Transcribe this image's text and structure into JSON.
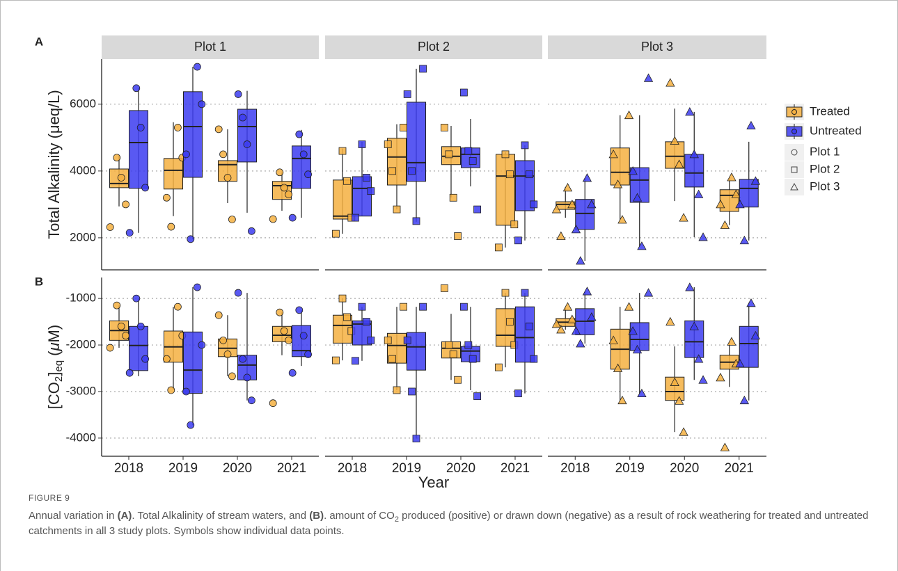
{
  "chart_data": {
    "type": "box",
    "x_label": "Year",
    "categories": [
      "2018",
      "2019",
      "2020",
      "2021"
    ],
    "facets": [
      "Plot 1",
      "Plot 2",
      "Plot 3"
    ],
    "shapes": [
      "circle",
      "square",
      "triangle"
    ],
    "series": [
      {
        "name": "Treated",
        "color": "#f5b041"
      },
      {
        "name": "Untreated",
        "color": "#3c3cf0"
      }
    ],
    "grid": true,
    "panels": [
      {
        "label": "A",
        "y_label": [
          {
            "text": "Total Alkalinity (μeq/L)"
          }
        ],
        "ylim": [
          1040,
          7350
        ],
        "yticks": [
          2000,
          4000,
          6000
        ],
        "boxes": [
          [
            [
              {
                "stats": [
                  2940,
                  3500,
                  3625,
                  4060,
                  4480
                ],
                "points": [
                  2320,
                  3000,
                  3800,
                  4400
                ]
              },
              {
                "stats": [
                  2650,
                  3460,
                  4020,
                  4375,
                  5460
                ],
                "points": [
                  2330,
                  3200,
                  4400,
                  5300
                ]
              },
              {
                "stats": [
                  3040,
                  3690,
                  4190,
                  4310,
                  5250
                ],
                "points": [
                  2550,
                  3800,
                  4500,
                  5250
                ]
              },
              {
                "stats": [
                  2810,
                  3150,
                  3560,
                  3690,
                  3960
                ],
                "points": [
                  2560,
                  3300,
                  3500,
                  3960
                ]
              }
            ],
            [
              {
                "stats": [
                  2150,
                  3480,
                  4850,
                  5810,
                  6480
                ],
                "points": [
                  2150,
                  3500,
                  5300,
                  6480
                ]
              },
              {
                "stats": [
                  1960,
                  3810,
                  5330,
                  6375,
                  7120
                ],
                "points": [
                  1960,
                  4500,
                  6000,
                  7120
                ]
              },
              {
                "stats": [
                  2750,
                  4270,
                  5330,
                  5850,
                  6400
                ],
                "points": [
                  2200,
                  4800,
                  5600,
                  6300
                ]
              },
              {
                "stats": [
                  2600,
                  3480,
                  4375,
                  4750,
                  5230
                ],
                "points": [
                  2600,
                  3900,
                  4500,
                  5100
                ]
              }
            ]
          ],
          [
            [
              {
                "stats": [
                  2120,
                  2560,
                  2650,
                  3730,
                  4670
                ],
                "points": [
                  2120,
                  2600,
                  3700,
                  4600
                ]
              },
              {
                "stats": [
                  2850,
                  3580,
                  4420,
                  4980,
                  5400
                ],
                "points": [
                  2850,
                  4000,
                  4800,
                  5300
                ]
              },
              {
                "stats": [
                  3210,
                  4190,
                  4440,
                  4730,
                  5350
                ],
                "points": [
                  2050,
                  3200,
                  4500,
                  5300
                ]
              },
              {
                "stats": [
                  1710,
                  2375,
                  3850,
                  4500,
                  4560
                ],
                "points": [
                  1710,
                  2400,
                  3900,
                  4500
                ]
              }
            ],
            [
              {
                "stats": [
                  2650,
                  2650,
                  3480,
                  3830,
                  4875
                ],
                "points": [
                  2600,
                  3400,
                  3800,
                  4800
                ]
              },
              {
                "stats": [
                  2480,
                  3690,
                  4250,
                  6060,
                  7060
                ],
                "points": [
                  2500,
                  4000,
                  6300,
                  7060
                ]
              },
              {
                "stats": [
                  3540,
                  4100,
                  4500,
                  4690,
                  5560
                ],
                "points": [
                  2850,
                  4300,
                  4600,
                  6350
                ]
              },
              {
                "stats": [
                  1920,
                  2810,
                  3850,
                  4310,
                  4770
                ],
                "points": [
                  1920,
                  3000,
                  3900,
                  4770
                ]
              }
            ]
          ],
          [
            [
              {
                "stats": [
                  2600,
                  2850,
                  3000,
                  3080,
                  3520
                ],
                "points": [
                  2050,
                  2850,
                  3000,
                  3500
                ]
              },
              {
                "stats": [
                  2540,
                  3580,
                  3960,
                  4690,
                  5670
                ],
                "points": [
                  2540,
                  3600,
                  4500,
                  5670
                ]
              },
              {
                "stats": [
                  3100,
                  4080,
                  4440,
                  4875,
                  5870
                ],
                "points": [
                  2600,
                  4200,
                  4900,
                  6640
                ]
              },
              {
                "stats": [
                  2380,
                  2790,
                  3270,
                  3440,
                  3810
                ],
                "points": [
                  2380,
                  3000,
                  3300,
                  3810
                ]
              }
            ],
            [
              {
                "stats": [
                  1310,
                  2250,
                  2730,
                  3150,
                  3790
                ],
                "points": [
                  1310,
                  2250,
                  3000,
                  3790
                ]
              },
              {
                "stats": [
                  1750,
                  3060,
                  3730,
                  4100,
                  5670
                ],
                "points": [
                  1750,
                  3200,
                  4000,
                  6780
                ]
              },
              {
                "stats": [
                  2020,
                  3520,
                  3940,
                  4500,
                  5770
                ],
                "points": [
                  2020,
                  3300,
                  4500,
                  5770
                ]
              },
              {
                "stats": [
                  1920,
                  2920,
                  3480,
                  3750,
                  4875
                ],
                "points": [
                  1920,
                  3000,
                  3700,
                  5360
                ]
              }
            ]
          ]
        ]
      },
      {
        "label": "B",
        "y_label": [
          {
            "text": "[CO"
          },
          {
            "text": "2",
            "sub": true
          },
          {
            "text": "]"
          },
          {
            "text": "eq",
            "sub": true
          },
          {
            "text": " ("
          },
          {
            "text": "μ",
            "italic": true
          },
          {
            "text": "M)"
          }
        ],
        "ylim": [
          -4390,
          -550
        ],
        "yticks": [
          -4000,
          -3000,
          -2000,
          -1000
        ],
        "boxes": [
          [
            [
              {
                "stats": [
                  -2060,
                  -1900,
                  -1690,
                  -1480,
                  -1150
                ],
                "points": [
                  -2060,
                  -1800,
                  -1600,
                  -1150
                ]
              },
              {
                "stats": [
                  -2970,
                  -2370,
                  -2040,
                  -1700,
                  -1180
                ],
                "points": [
                  -2970,
                  -2300,
                  -1800,
                  -1180
                ]
              },
              {
                "stats": [
                  -2670,
                  -2250,
                  -2070,
                  -1870,
                  -1360
                ],
                "points": [
                  -2670,
                  -2200,
                  -1900,
                  -1360
                ]
              },
              {
                "stats": [
                  -2220,
                  -1930,
                  -1790,
                  -1600,
                  -1300
                ],
                "points": [
                  -3250,
                  -1900,
                  -1700,
                  -1300
                ]
              }
            ],
            [
              {
                "stats": [
                  -2670,
                  -2550,
                  -2010,
                  -1600,
                  -1000
                ],
                "points": [
                  -2600,
                  -2300,
                  -1600,
                  -1000
                ]
              },
              {
                "stats": [
                  -3720,
                  -3040,
                  -2540,
                  -1720,
                  -760
                ],
                "points": [
                  -3720,
                  -3000,
                  -2000,
                  -760
                ]
              },
              {
                "stats": [
                  -3190,
                  -2750,
                  -2430,
                  -2220,
                  -880
                ],
                "points": [
                  -3190,
                  -2700,
                  -2300,
                  -880
                ]
              },
              {
                "stats": [
                  -2450,
                  -2250,
                  -2120,
                  -1580,
                  -1250
                ],
                "points": [
                  -2600,
                  -2200,
                  -1800,
                  -1250
                ]
              }
            ]
          ],
          [
            [
              {
                "stats": [
                  -2330,
                  -1960,
                  -1580,
                  -1360,
                  -1000
                ],
                "points": [
                  -2330,
                  -1700,
                  -1400,
                  -1000
                ]
              },
              {
                "stats": [
                  -2970,
                  -2390,
                  -2010,
                  -1750,
                  -1180
                ],
                "points": [
                  -2970,
                  -2300,
                  -1900,
                  -1180
                ]
              },
              {
                "stats": [
                  -2750,
                  -2280,
                  -2070,
                  -1930,
                  -1330
                ],
                "points": [
                  -2750,
                  -2200,
                  -2000,
                  -780
                ]
              },
              {
                "stats": [
                  -2480,
                  -2030,
                  -1790,
                  -1220,
                  -880
                ],
                "points": [
                  -2480,
                  -2000,
                  -1500,
                  -880
                ]
              }
            ],
            [
              {
                "stats": [
                  -2340,
                  -2000,
                  -1550,
                  -1480,
                  -1180
                ],
                "points": [
                  -2340,
                  -1900,
                  -1500,
                  -1180
                ]
              },
              {
                "stats": [
                  -4010,
                  -2540,
                  -2040,
                  -1730,
                  -1180
                ],
                "points": [
                  -4010,
                  -3000,
                  -1900,
                  -1180
                ]
              },
              {
                "stats": [
                  -2970,
                  -2360,
                  -2130,
                  -2030,
                  -1180
                ],
                "points": [
                  -3100,
                  -2300,
                  -2000,
                  -1180
                ]
              },
              {
                "stats": [
                  -3040,
                  -2370,
                  -1840,
                  -1180,
                  -880
                ],
                "points": [
                  -3040,
                  -2300,
                  -1600,
                  -880
                ]
              }
            ]
          ],
          [
            [
              {
                "stats": [
                  -1670,
                  -1600,
                  -1510,
                  -1430,
                  -1180
                ],
                "points": [
                  -1670,
                  -1550,
                  -1450,
                  -1180
                ]
              },
              {
                "stats": [
                  -3190,
                  -2520,
                  -2090,
                  -1660,
                  -1180
                ],
                "points": [
                  -3190,
                  -2500,
                  -1900,
                  -1180
                ]
              },
              {
                "stats": [
                  -3870,
                  -3190,
                  -3000,
                  -2690,
                  -2030
                ],
                "points": [
                  -3870,
                  -3200,
                  -2800,
                  -1500
                ]
              },
              {
                "stats": [
                  -2900,
                  -2520,
                  -2370,
                  -2220,
                  -1930
                ],
                "points": [
                  -4200,
                  -2700,
                  -2400,
                  -1930
                ]
              }
            ],
            [
              {
                "stats": [
                  -1970,
                  -1780,
                  -1490,
                  -1220,
                  -850
                ],
                "points": [
                  -1970,
                  -1700,
                  -1400,
                  -850
                ]
              },
              {
                "stats": [
                  -3040,
                  -2120,
                  -1880,
                  -1520,
                  -880
                ],
                "points": [
                  -3040,
                  -2100,
                  -1700,
                  -880
                ]
              },
              {
                "stats": [
                  -2750,
                  -2270,
                  -1930,
                  -1480,
                  -760
                ],
                "points": [
                  -2750,
                  -2300,
                  -1600,
                  -760
                ]
              },
              {
                "stats": [
                  -3190,
                  -2480,
                  -1970,
                  -1600,
                  -1100
                ],
                "points": [
                  -3190,
                  -2400,
                  -1800,
                  -1100
                ]
              }
            ]
          ]
        ]
      }
    ]
  },
  "caption": {
    "label": "FIGURE 9",
    "parts": [
      {
        "text": "Annual variation in "
      },
      {
        "text": "(A)",
        "bold": true
      },
      {
        "text": ". Total Alkalinity of stream waters, and "
      },
      {
        "text": "(B)",
        "bold": true
      },
      {
        "text": ". amount of CO"
      },
      {
        "text": "2",
        "sub": true
      },
      {
        "text": " produced (positive) or drawn down (negative) as a result of rock weathering for treated and untreated catchments in all 3 study plots. Symbols show individual data points."
      }
    ]
  }
}
